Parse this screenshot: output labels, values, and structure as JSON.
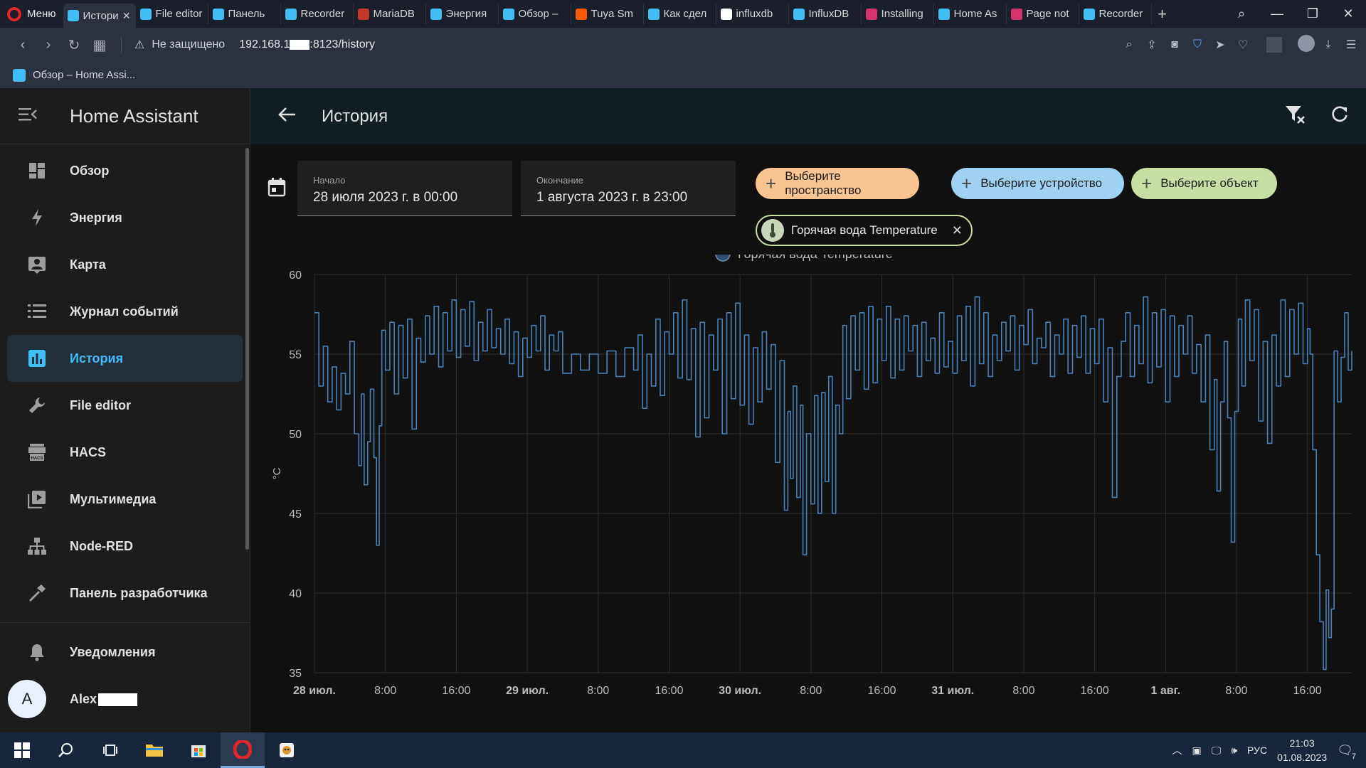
{
  "browser": {
    "menu_label": "Меню",
    "tabs": [
      {
        "title": "История",
        "color": "#41bdf5",
        "active": true
      },
      {
        "title": "File editor",
        "color": "#41bdf5"
      },
      {
        "title": "Панель",
        "color": "#41bdf5"
      },
      {
        "title": "Recorder",
        "color": "#41bdf5"
      },
      {
        "title": "MariaDB",
        "color": "#c0392b"
      },
      {
        "title": "Энергия",
        "color": "#41bdf5"
      },
      {
        "title": "Обзор –",
        "color": "#41bdf5"
      },
      {
        "title": "Tuya Sm",
        "color": "#ff5a00"
      },
      {
        "title": "Как сдел",
        "color": "#41bdf5"
      },
      {
        "title": "influxdb",
        "color": "#ffffff"
      },
      {
        "title": "InfluxDB",
        "color": "#41bdf5"
      },
      {
        "title": "Installing",
        "color": "#d6336c"
      },
      {
        "title": "Home As",
        "color": "#41bdf5"
      },
      {
        "title": "Page not",
        "color": "#d6336c"
      },
      {
        "title": "Recorder",
        "color": "#41bdf5"
      }
    ],
    "not_secure": "Не защищено",
    "url_prefix": "192.168.1",
    "url_suffix": ":8123/history",
    "bookmark": "Обзор – Home Assi..."
  },
  "sidebar": {
    "title": "Home Assistant",
    "items": [
      {
        "label": "Обзор",
        "icon": "dashboard-icon"
      },
      {
        "label": "Энергия",
        "icon": "lightning-icon"
      },
      {
        "label": "Карта",
        "icon": "map-person-icon"
      },
      {
        "label": "Журнал событий",
        "icon": "list-icon"
      },
      {
        "label": "История",
        "icon": "chart-box-icon",
        "active": true
      },
      {
        "label": "File editor",
        "icon": "wrench-icon"
      },
      {
        "label": "HACS",
        "icon": "hacs-icon"
      },
      {
        "label": "Мультимедиа",
        "icon": "play-box-icon"
      },
      {
        "label": "Node-RED",
        "icon": "sitemap-icon"
      },
      {
        "label": "Панель разработчика",
        "icon": "hammer-icon"
      }
    ],
    "notifications": "Уведомления",
    "user_initial": "A",
    "user_name": "Alex"
  },
  "header": {
    "title": "История"
  },
  "filters": {
    "start_label": "Начало",
    "start_value": "28 июля 2023 г. в 00:00",
    "end_label": "Окончание",
    "end_value": "1 августа 2023 г. в 23:00",
    "area_chip": "Выберите пространство",
    "device_chip": "Выберите устройство",
    "entity_chip": "Выберите объект",
    "selected_entity": "Горячая вода Temperature",
    "colors": {
      "area": "#f9c48f",
      "device": "#9fd2f0",
      "entity": "#c7dfa5"
    }
  },
  "chart_data": {
    "type": "line",
    "ylabel": "°C",
    "ylim": [
      35,
      60
    ],
    "yticks": [
      35,
      40,
      45,
      50,
      55,
      60
    ],
    "legend": [
      "Горячая вода Temperature"
    ],
    "x_unit": "hours since 28 июл. 00:00",
    "xlim": [
      0,
      117
    ],
    "xticks": [
      {
        "t": 0,
        "label": "28 июл.",
        "bold": true
      },
      {
        "t": 8,
        "label": "8:00"
      },
      {
        "t": 16,
        "label": "16:00"
      },
      {
        "t": 24,
        "label": "29 июл.",
        "bold": true
      },
      {
        "t": 32,
        "label": "8:00"
      },
      {
        "t": 40,
        "label": "16:00"
      },
      {
        "t": 48,
        "label": "30 июл.",
        "bold": true
      },
      {
        "t": 56,
        "label": "8:00"
      },
      {
        "t": 64,
        "label": "16:00"
      },
      {
        "t": 72,
        "label": "31 июл.",
        "bold": true
      },
      {
        "t": 80,
        "label": "8:00"
      },
      {
        "t": 88,
        "label": "16:00"
      },
      {
        "t": 96,
        "label": "1 авг.",
        "bold": true
      },
      {
        "t": 104,
        "label": "8:00"
      },
      {
        "t": 112,
        "label": "16:00"
      }
    ],
    "series": [
      {
        "name": "Горячая вода Temperature",
        "color": "#4a7fb5",
        "points": [
          [
            0,
            57.6
          ],
          [
            0.5,
            53.0
          ],
          [
            1,
            55.5
          ],
          [
            1.5,
            52.0
          ],
          [
            2,
            54.2
          ],
          [
            2.5,
            51.5
          ],
          [
            3,
            53.8
          ],
          [
            3.5,
            52.5
          ],
          [
            4,
            55.8
          ],
          [
            4.5,
            50.0
          ],
          [
            5,
            48.0
          ],
          [
            5.3,
            52.5
          ],
          [
            5.6,
            46.8
          ],
          [
            6,
            49.5
          ],
          [
            6.3,
            52.8
          ],
          [
            6.7,
            48.5
          ],
          [
            7,
            43.0
          ],
          [
            7.3,
            50.5
          ],
          [
            7.6,
            56.5
          ],
          [
            8,
            54.0
          ],
          [
            8.5,
            57.0
          ],
          [
            9,
            52.5
          ],
          [
            9.5,
            56.8
          ],
          [
            10,
            53.5
          ],
          [
            10.5,
            57.2
          ],
          [
            11,
            50.3
          ],
          [
            11.5,
            56.0
          ],
          [
            12,
            54.5
          ],
          [
            12.5,
            57.4
          ],
          [
            13,
            55.0
          ],
          [
            13.5,
            58.0
          ],
          [
            14,
            54.2
          ],
          [
            14.5,
            57.6
          ],
          [
            15,
            55.2
          ],
          [
            15.5,
            58.4
          ],
          [
            16,
            54.8
          ],
          [
            16.5,
            57.8
          ],
          [
            17,
            55.5
          ],
          [
            17.5,
            58.3
          ],
          [
            18,
            54.6
          ],
          [
            18.5,
            57.0
          ],
          [
            19,
            55.2
          ],
          [
            19.5,
            57.8
          ],
          [
            20,
            55.4
          ],
          [
            20.5,
            56.6
          ],
          [
            21,
            55.0
          ],
          [
            21.5,
            57.2
          ],
          [
            22,
            54.4
          ],
          [
            22.5,
            56.4
          ],
          [
            23,
            53.6
          ],
          [
            23.5,
            56.0
          ],
          [
            24,
            54.8
          ],
          [
            24.5,
            56.8
          ],
          [
            25,
            55.2
          ],
          [
            25.5,
            57.4
          ],
          [
            26,
            54.0
          ],
          [
            26.5,
            56.2
          ],
          [
            27,
            55.2
          ],
          [
            27.5,
            56.4
          ],
          [
            28,
            53.8
          ],
          [
            29,
            55.0
          ],
          [
            30,
            54.0
          ],
          [
            31,
            55.0
          ],
          [
            32,
            53.8
          ],
          [
            33,
            55.2
          ],
          [
            34,
            53.6
          ],
          [
            35,
            55.4
          ],
          [
            36,
            54.0
          ],
          [
            36.5,
            56.2
          ],
          [
            37,
            51.6
          ],
          [
            37.5,
            55.0
          ],
          [
            38,
            53.0
          ],
          [
            38.5,
            57.2
          ],
          [
            39,
            52.4
          ],
          [
            39.5,
            56.4
          ],
          [
            40,
            55.0
          ],
          [
            40.5,
            57.6
          ],
          [
            41,
            53.5
          ],
          [
            41.5,
            58.4
          ],
          [
            42,
            53.4
          ],
          [
            42.5,
            56.6
          ],
          [
            43,
            49.8
          ],
          [
            43.5,
            57.0
          ],
          [
            44,
            51.0
          ],
          [
            44.5,
            56.2
          ],
          [
            45,
            54.0
          ],
          [
            45.5,
            57.2
          ],
          [
            46,
            50.0
          ],
          [
            46.5,
            57.6
          ],
          [
            47,
            52.2
          ],
          [
            47.5,
            58.2
          ],
          [
            48,
            51.8
          ],
          [
            48.5,
            56.2
          ],
          [
            49,
            50.6
          ],
          [
            49.5,
            55.4
          ],
          [
            50,
            52.0
          ],
          [
            50.5,
            56.4
          ],
          [
            51,
            52.8
          ],
          [
            51.5,
            55.6
          ],
          [
            52,
            48.2
          ],
          [
            52.5,
            54.6
          ],
          [
            53,
            45.2
          ],
          [
            53.4,
            51.4
          ],
          [
            53.7,
            47.2
          ],
          [
            54,
            53.0
          ],
          [
            54.4,
            46.0
          ],
          [
            54.8,
            51.8
          ],
          [
            55.1,
            42.4
          ],
          [
            55.5,
            50.0
          ],
          [
            56,
            45.6
          ],
          [
            56.4,
            52.4
          ],
          [
            56.8,
            45.0
          ],
          [
            57.2,
            52.6
          ],
          [
            57.6,
            47.0
          ],
          [
            58,
            53.6
          ],
          [
            58.4,
            45.0
          ],
          [
            58.8,
            51.8
          ],
          [
            59.2,
            50.0
          ],
          [
            59.6,
            56.8
          ],
          [
            60,
            52.2
          ],
          [
            60.5,
            57.4
          ],
          [
            61,
            54.0
          ],
          [
            61.5,
            57.6
          ],
          [
            62,
            52.8
          ],
          [
            62.5,
            58.0
          ],
          [
            63,
            53.2
          ],
          [
            63.5,
            57.2
          ],
          [
            64,
            54.6
          ],
          [
            64.5,
            58.0
          ],
          [
            65,
            53.5
          ],
          [
            65.5,
            57.2
          ],
          [
            66,
            54.0
          ],
          [
            66.5,
            57.4
          ],
          [
            67,
            55.2
          ],
          [
            67.5,
            56.8
          ],
          [
            68,
            53.6
          ],
          [
            68.5,
            57.0
          ],
          [
            69,
            54.6
          ],
          [
            69.5,
            56.0
          ],
          [
            70,
            53.8
          ],
          [
            70.5,
            57.6
          ],
          [
            71,
            54.2
          ],
          [
            71.5,
            55.8
          ],
          [
            72,
            53.8
          ],
          [
            72.5,
            57.4
          ],
          [
            73,
            54.6
          ],
          [
            73.5,
            58.0
          ],
          [
            74,
            53.0
          ],
          [
            74.5,
            58.6
          ],
          [
            75,
            54.4
          ],
          [
            75.5,
            57.6
          ],
          [
            76,
            53.6
          ],
          [
            76.5,
            56.2
          ],
          [
            77,
            54.6
          ],
          [
            77.5,
            57.0
          ],
          [
            78,
            55.2
          ],
          [
            78.5,
            57.4
          ],
          [
            79,
            54.0
          ],
          [
            79.5,
            56.8
          ],
          [
            80,
            55.6
          ],
          [
            80.5,
            57.8
          ],
          [
            81,
            54.4
          ],
          [
            81.5,
            56.0
          ],
          [
            82,
            55.4
          ],
          [
            82.5,
            57.0
          ],
          [
            83,
            53.6
          ],
          [
            83.5,
            56.2
          ],
          [
            84,
            55.0
          ],
          [
            84.5,
            57.2
          ],
          [
            85,
            53.8
          ],
          [
            85.5,
            56.8
          ],
          [
            86,
            54.8
          ],
          [
            86.5,
            57.4
          ],
          [
            87,
            53.8
          ],
          [
            87.5,
            56.6
          ],
          [
            88,
            54.4
          ],
          [
            88.5,
            57.2
          ],
          [
            89,
            52.0
          ],
          [
            89.5,
            55.4
          ],
          [
            90,
            46.0
          ],
          [
            90.5,
            53.6
          ],
          [
            91,
            55.8
          ],
          [
            91.5,
            57.6
          ],
          [
            92,
            53.6
          ],
          [
            92.5,
            56.8
          ],
          [
            93,
            54.4
          ],
          [
            93.5,
            58.6
          ],
          [
            94,
            53.2
          ],
          [
            94.5,
            57.6
          ],
          [
            95,
            54.2
          ],
          [
            95.5,
            57.8
          ],
          [
            96,
            52.0
          ],
          [
            96.5,
            57.4
          ],
          [
            97,
            53.6
          ],
          [
            97.5,
            56.8
          ],
          [
            98,
            55.0
          ],
          [
            98.5,
            57.4
          ],
          [
            99,
            53.8
          ],
          [
            99.5,
            55.6
          ],
          [
            100,
            52.0
          ],
          [
            100.5,
            56.2
          ],
          [
            101,
            49.0
          ],
          [
            101.5,
            53.4
          ],
          [
            101.8,
            46.4
          ],
          [
            102.2,
            52.0
          ],
          [
            102.6,
            55.8
          ],
          [
            103,
            51.0
          ],
          [
            103.4,
            43.2
          ],
          [
            103.8,
            51.4
          ],
          [
            104.2,
            57.2
          ],
          [
            104.6,
            53.0
          ],
          [
            105,
            58.4
          ],
          [
            105.5,
            54.6
          ],
          [
            106,
            57.8
          ],
          [
            106.5,
            50.8
          ],
          [
            107,
            55.8
          ],
          [
            107.5,
            49.4
          ],
          [
            108,
            56.2
          ],
          [
            108.5,
            53.0
          ],
          [
            109,
            58.4
          ],
          [
            109.5,
            53.6
          ],
          [
            110,
            57.8
          ],
          [
            110.5,
            55.0
          ],
          [
            111,
            58.2
          ],
          [
            111.5,
            54.4
          ],
          [
            112,
            56.6
          ],
          [
            112.3,
            55.0
          ],
          [
            112.6,
            49.0
          ],
          [
            113,
            42.4
          ],
          [
            113.4,
            38.2
          ],
          [
            113.8,
            35.2
          ],
          [
            114.1,
            40.2
          ],
          [
            114.4,
            37.2
          ],
          [
            114.7,
            39.0
          ],
          [
            115,
            55.2
          ],
          [
            115.4,
            52.0
          ],
          [
            115.8,
            54.8
          ],
          [
            116.2,
            57.6
          ],
          [
            116.6,
            54.0
          ],
          [
            117,
            55.2
          ]
        ]
      }
    ]
  },
  "taskbar": {
    "lang": "РУС",
    "time": "21:03",
    "date": "01.08.2023",
    "notif_count": "7"
  }
}
